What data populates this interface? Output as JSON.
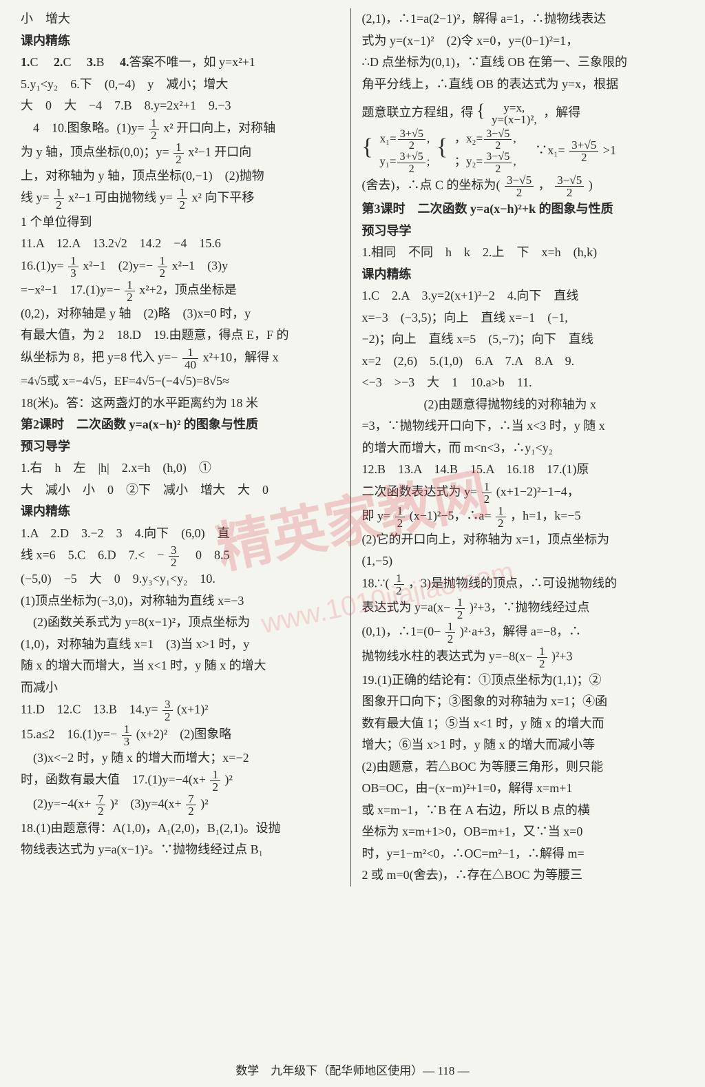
{
  "left": {
    "l1": "小　增大",
    "heading1": "课内精练",
    "l2_a": "1.",
    "l2_b": "C　",
    "l2_c": "2.",
    "l2_d": "C　",
    "l2_e": "3.",
    "l2_f": "B　",
    "l2_g": "4.",
    "l2_h": "答案不唯一，如 y=x²+1",
    "l3": "5.y₁<y₂　6.下　(0,−4)　y　减小；增大",
    "l4": "大　0　大　−4　7.B　8.y=2x²+1　9.−3",
    "l5a": "　4　10.图象略。(1)y=",
    "l5b": " x² 开口向上，对称轴",
    "l6a": "为 y 轴，顶点坐标(0,0)；y=",
    "l6b": " x²−1 开口向",
    "l7": "上，对称轴为 y 轴，顶点坐标(0,−1)　(2)抛物",
    "l8a": "线 y=",
    "l8b": " x²−1 可由抛物线 y=",
    "l8c": " x² 向下平移",
    "l9": "1 个单位得到",
    "l10": "11.A　12.A　13.2√2　14.2　−4　15.6",
    "l11a": "16.(1)y=",
    "l11b": " x²−1　(2)y=−",
    "l11c": " x²−1　(3)y",
    "l12a": "=−x²−1　17.(1)y=−",
    "l12b": " x²+2，顶点坐标是",
    "l13": "(0,2)，对称轴是 y 轴　(2)略　(3)x=0 时，y",
    "l14": "有最大值，为 2　18.D　19.由题意，得点 E，F 的",
    "l15a": "纵坐标为 8，把 y=8 代入 y=−",
    "l15b": " x²+10，解得 x",
    "l16": "=4√5或 x=−4√5，EF=4√5−(−4√5)=8√5≈",
    "l17": "18(米)。答：这两盏灯的水平距离约为 18 米",
    "heading2": "第2课时　二次函数 y=a(x−h)² 的图象与性质",
    "heading3": "预习导学",
    "l18": "1.右　h　左　|h|　2.x=h　(h,0)　①",
    "l19": "大　减小　小　0　②下　减小　增大　大　0",
    "heading4": "课内精练",
    "l20": "1.A　2.D　3.−2　3　4.向下　(6,0)　直",
    "l21a": "线 x=6　5.C　6.D　7.<　−",
    "l21b": "　0　8.5",
    "l22": "(−5,0)　−5　大　0　9.y₃<y₁<y₂　10.",
    "l23": "(1)顶点坐标为(−3,0)，对称轴为直线 x=−3",
    "l24": "　(2)函数关系式为 y=8(x−1)²，顶点坐标为",
    "l25": "(1,0)，对称轴为直线 x=1　(3)当 x>1 时，y",
    "l26": "随 x 的增大而增大，当 x<1 时，y 随 x 的增大",
    "l27": "而减小",
    "l28a": "11.D　12.C　13.B　14.y=",
    "l28b": " (x+1)²",
    "l29a": "15.a≤2　16.(1)y=−",
    "l29b": " (x+2)²　(2)图象略",
    "l30": "　(3)x<−2 时，y 随 x 的增大而增大；x=−2",
    "l31a": "时，函数有最大值　17.(1)y=−4(x+",
    "l31b": " )²",
    "l32a": "　(2)y=−4(x+",
    "l32b": " )²　(3)y=4(x+",
    "l32c": " )²",
    "l33": "18.(1)由题意得：A(1,0)，A₁(2,0)，B₁(2,1)。设抛",
    "l34": "物线表达式为 y=a(x−1)²。∵抛物线经过点 B₁"
  },
  "right": {
    "l1": "(2,1)，∴1=a(2−1)²，解得 a=1，∴抛物线表达",
    "l2": "式为 y=(x−1)²　(2)令 x=0，y=(0−1)²=1，",
    "l3": "∴D 点坐标为(0,1)，∵直线 OB 在第一、三象限的",
    "l4": "角平分线上，∴直线 OB 的表达式为 y=x，根据",
    "l5a": "题意联立方程组，得 ",
    "l5b": "，解得",
    "l6a": "x₁=",
    "l6b": "，x₂=",
    "l6c": "　∵x₁=",
    "l6d": ">1",
    "l7a": "y₁=",
    "l7b": "；y₂=",
    "l7c": "，",
    "l8a": "(舍去)，∴点 C 的坐标为(",
    "l8b": "，",
    "l8c": ")",
    "heading1": "第3课时　二次函数 y=a(x−h)²+k 的图象与性质",
    "heading2": "预习导学",
    "l9": "1.相同　不同　h　k　2.上　下　x=h　(h,k)",
    "heading3": "课内精练",
    "l10": "1.C　2.A　3.y=2(x+1)²−2　4.向下　直线",
    "l11": "x=−3　(−3,5)；向上　直线 x=−1　(−1,",
    "l12": "−2)；向上　直线 x=5　(5,−7)；向下　直线",
    "l13": "x=2　(2,6)　5.(1,0)　6.A　7.A　8.A　9.",
    "l14": "<−3　>−3　大　1　10.a>b　11.",
    "l15": "　　　　　(2)由题意得抛物线的对称轴为 x",
    "l16": "=3，∵抛物线开口向下，∴当 x<3 时，y 随 x",
    "l17": "的增大而增大，而 m<n<3，∴y₁<y₂",
    "l18": "12.B　13.A　14.B　15.A　16.18　17.(1)原",
    "l19a": "二次函数表达式为 y=",
    "l19b": " (x+1−2)²−1−4，",
    "l20a": "即 y=",
    "l20b": " (x−1)²−5，∴a=",
    "l20c": "，h=1，k=−5",
    "l21": "(2)它的开口向上，对称轴为 x=1，顶点坐标为",
    "l22": "(1,−5)",
    "l23a": "18.∵(",
    "l23b": "，3)是抛物线的顶点，∴可设抛物线的",
    "l24a": "表达式为 y=a(x−",
    "l24b": ")²+3，∵抛物线经过点",
    "l25a": "(0,1)，∴1=(0−",
    "l25b": ")²·a+3，解得 a=−8，∴",
    "l26a": "抛物线水柱的表达式为 y=−8(x−",
    "l26b": ")²+3",
    "l27": "19.(1)正确的结论有：①顶点坐标为(1,1)；②",
    "l28": "图象开口向下；③图象的对称轴为 x=1；④函",
    "l29": "数有最大值 1；⑤当 x<1 时，y 随 x 的增大而",
    "l30": "增大；⑥当 x>1 时，y 随 x 的增大而减小等",
    "l31": "(2)由题意，若△BOC 为等腰三角形，则只能",
    "l32": "OB=OC，由−(x−m)²+1=0，解得 x=m+1",
    "l33": "或 x=m−1，∵B 在 A 右边，所以 B 点的横",
    "l34": "坐标为 x=m+1>0，OB=m+1，又∵当 x=0",
    "l35": "时，y=1−m²<0，∴OC=m²−1，∴解得 m=",
    "l36": "2 或 m=0(舍去)，∴存在△BOC 为等腰三"
  },
  "footer": "数学　九年级下（配华师地区使用）— 118 —",
  "watermark1": "精英家教网",
  "watermark2": "www.1010jiajiao.com",
  "fractions": {
    "half_num": "1",
    "half_den": "2",
    "third_num": "1",
    "third_den": "3",
    "fortieth_num": "1",
    "fortieth_den": "40",
    "threehalf_num": "3",
    "threehalf_den": "2",
    "sevenhalf_num": "7",
    "sevenhalf_den": "2",
    "x1_num": "3+√5",
    "x1_den": "2",
    "x2_num": "3−√5",
    "x2_den": "2"
  },
  "sys": {
    "ysx": "y=x,",
    "ysx2": "y=(x−1)²,"
  }
}
